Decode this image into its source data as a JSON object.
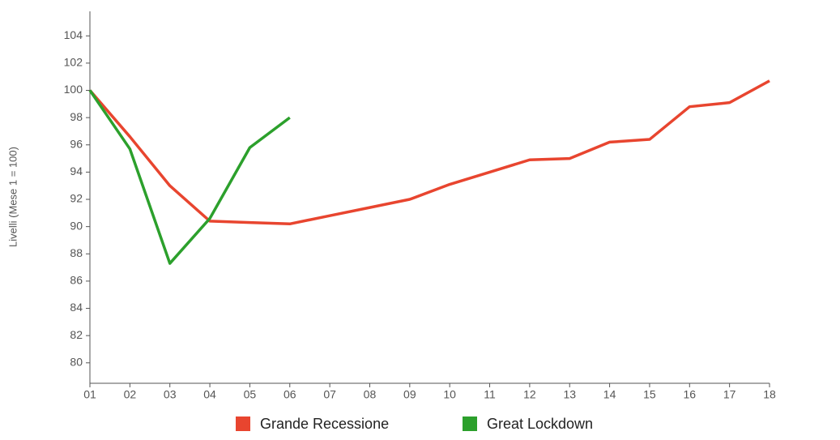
{
  "chart_data": {
    "type": "line",
    "y_label": "Livelli (Mese 1 = 100)",
    "categories": [
      "01",
      "02",
      "03",
      "04",
      "05",
      "06",
      "07",
      "08",
      "09",
      "10",
      "11",
      "12",
      "13",
      "14",
      "15",
      "16",
      "17",
      "18"
    ],
    "series": [
      {
        "name": "Grande Recessione",
        "color": "#e8452f",
        "values": [
          100,
          96.6,
          93.0,
          90.4,
          90.3,
          90.2,
          90.8,
          91.4,
          92.0,
          93.1,
          94.0,
          94.9,
          95.0,
          96.2,
          96.4,
          98.8,
          99.1,
          100.7
        ]
      },
      {
        "name": "Great Lockdown",
        "color": "#2ca02c",
        "values": [
          100,
          95.7,
          87.3,
          90.6,
          95.8,
          98.0,
          null,
          null,
          null,
          null,
          null,
          null,
          null,
          null,
          null,
          null,
          null,
          null
        ]
      }
    ],
    "ylim": [
      78.5,
      105.8
    ],
    "yticks": [
      80,
      82,
      84,
      86,
      88,
      90,
      92,
      94,
      96,
      98,
      100,
      102,
      104
    ],
    "grid": false,
    "legend": "bottom"
  }
}
